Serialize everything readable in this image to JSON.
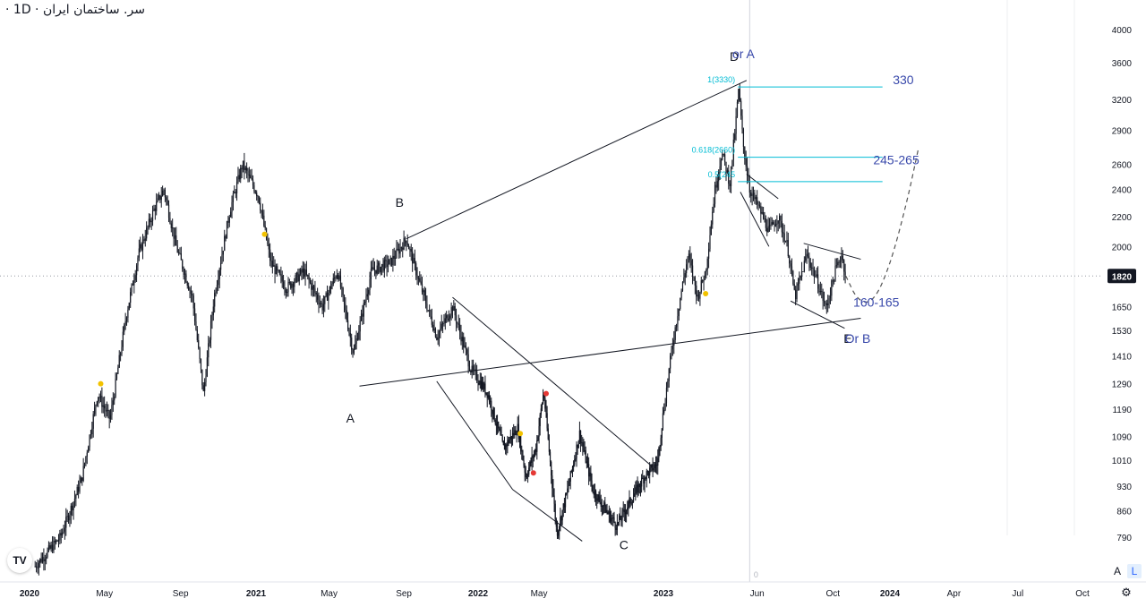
{
  "symbol": {
    "title": "سر. ساختمان ایران · 1D ·"
  },
  "logo": {
    "text": "TV",
    "icon": "tradingview-logo-icon"
  },
  "scale_buttons": {
    "auto": "A",
    "log": "L"
  },
  "settings": {
    "icon": "gear-icon"
  },
  "colors": {
    "candle": "#131722",
    "fib": "#00bcd4",
    "annotation": "#3949ab",
    "crosshair": "#9598a1",
    "marker_yellow": "#f2c200",
    "marker_red": "#e53935"
  },
  "chart_data": {
    "type": "candlestick",
    "y_scale": "log",
    "current_price": "1820",
    "y_ticks": [
      4000,
      3600,
      3200,
      2900,
      2600,
      2400,
      2200,
      2000,
      1820,
      1650,
      1530,
      1410,
      1290,
      1190,
      1090,
      1010,
      930,
      860,
      790
    ],
    "x_ticks": [
      {
        "date": "2020-01-01",
        "label": "2020",
        "bold": true
      },
      {
        "date": "2020-05-01",
        "label": "May",
        "bold": false
      },
      {
        "date": "2020-09-01",
        "label": "Sep",
        "bold": false
      },
      {
        "date": "2021-01-01",
        "label": "2021",
        "bold": true
      },
      {
        "date": "2021-05-01",
        "label": "May",
        "bold": false
      },
      {
        "date": "2021-09-01",
        "label": "Sep",
        "bold": false
      },
      {
        "date": "2022-01-01",
        "label": "2022",
        "bold": true
      },
      {
        "date": "2022-05-01",
        "label": "May",
        "bold": false
      },
      {
        "date": "2023-01-01",
        "label": "2023",
        "bold": true
      },
      {
        "date": "2023-06-01",
        "label": "Jun",
        "bold": false
      },
      {
        "date": "2023-10-01",
        "label": "Oct",
        "bold": false
      },
      {
        "date": "2024-01-01",
        "label": "2024",
        "bold": true
      },
      {
        "date": "2024-04-01",
        "label": "Apr",
        "bold": false
      },
      {
        "date": "2024-07-01",
        "label": "Jul",
        "bold": false
      },
      {
        "date": "2024-10-01",
        "label": "Oct",
        "bold": false
      }
    ],
    "price_path": [
      [
        "2020-01-10",
        720
      ],
      [
        "2020-02-20",
        790
      ],
      [
        "2020-03-25",
        950
      ],
      [
        "2020-04-20",
        1250
      ],
      [
        "2020-05-10",
        1150
      ],
      [
        "2020-06-05",
        1600
      ],
      [
        "2020-06-25",
        1950
      ],
      [
        "2020-07-20",
        2250
      ],
      [
        "2020-08-05",
        2400
      ],
      [
        "2020-08-25",
        2000
      ],
      [
        "2020-09-20",
        1700
      ],
      [
        "2020-10-08",
        1250
      ],
      [
        "2020-10-25",
        1700
      ],
      [
        "2020-11-20",
        2250
      ],
      [
        "2020-12-10",
        2600
      ],
      [
        "2021-01-05",
        2350
      ],
      [
        "2021-01-25",
        1900
      ],
      [
        "2021-02-20",
        1750
      ],
      [
        "2021-03-20",
        1850
      ],
      [
        "2021-04-20",
        1650
      ],
      [
        "2021-05-15",
        1850
      ],
      [
        "2021-06-10",
        1420
      ],
      [
        "2021-07-10",
        1850
      ],
      [
        "2021-08-10",
        1900
      ],
      [
        "2021-09-05",
        2050
      ],
      [
        "2021-09-25",
        1800
      ],
      [
        "2021-10-25",
        1500
      ],
      [
        "2021-11-20",
        1650
      ],
      [
        "2021-12-20",
        1350
      ],
      [
        "2022-01-20",
        1250
      ],
      [
        "2022-02-20",
        1050
      ],
      [
        "2022-03-20",
        1120
      ],
      [
        "2022-04-05",
        960
      ],
      [
        "2022-04-25",
        1050
      ],
      [
        "2022-05-10",
        1260
      ],
      [
        "2022-06-05",
        800
      ],
      [
        "2022-06-25",
        910
      ],
      [
        "2022-07-20",
        1100
      ],
      [
        "2022-08-15",
        920
      ],
      [
        "2022-09-10",
        860
      ],
      [
        "2022-10-01",
        820
      ],
      [
        "2022-10-25",
        880
      ],
      [
        "2022-11-25",
        960
      ],
      [
        "2022-12-20",
        1000
      ],
      [
        "2023-01-05",
        1250
      ],
      [
        "2023-01-15",
        1450
      ],
      [
        "2023-01-28",
        1700
      ],
      [
        "2023-02-10",
        1950
      ],
      [
        "2023-02-25",
        1700
      ],
      [
        "2023-03-10",
        1850
      ],
      [
        "2023-03-25",
        2400
      ],
      [
        "2023-04-05",
        2700
      ],
      [
        "2023-04-18",
        2450
      ],
      [
        "2023-04-28",
        3000
      ],
      [
        "2023-05-02",
        3300
      ],
      [
        "2023-05-10",
        2750
      ],
      [
        "2023-05-20",
        2400
      ],
      [
        "2023-06-05",
        2250
      ],
      [
        "2023-06-20",
        2100
      ],
      [
        "2023-07-05",
        2200
      ],
      [
        "2023-07-20",
        2000
      ],
      [
        "2023-08-01",
        1700
      ],
      [
        "2023-08-20",
        1950
      ],
      [
        "2023-09-05",
        1800
      ],
      [
        "2023-09-20",
        1640
      ],
      [
        "2023-10-05",
        1850
      ],
      [
        "2023-10-15",
        1950
      ],
      [
        "2023-10-22",
        1820
      ]
    ],
    "trend_lines": [
      {
        "from": [
          "2021-09-05",
          2050
        ],
        "to": [
          "2023-05-15",
          3400
        ]
      },
      {
        "from": [
          "2021-06-20",
          1280
        ],
        "to": [
          "2023-11-15",
          1590
        ]
      },
      {
        "from": [
          "2021-11-20",
          1700
        ],
        "to": [
          "2022-12-10",
          990
        ]
      },
      {
        "from": [
          "2021-10-25",
          1300
        ],
        "to": [
          "2022-03-10",
          920
        ]
      },
      {
        "from": [
          "2022-03-10",
          920
        ],
        "to": [
          "2022-07-25",
          780
        ]
      },
      {
        "from": [
          "2023-05-15",
          2520
        ],
        "to": [
          "2023-07-05",
          2330
        ]
      },
      {
        "from": [
          "2023-05-05",
          2380
        ],
        "to": [
          "2023-06-20",
          2000
        ]
      },
      {
        "from": [
          "2023-08-15",
          2020
        ],
        "to": [
          "2023-11-15",
          1920
        ]
      },
      {
        "from": [
          "2023-07-25",
          1680
        ],
        "to": [
          "2023-10-20",
          1540
        ]
      }
    ],
    "forecast_curve": [
      [
        "2023-10-22",
        1820
      ],
      [
        "2023-11-10",
        1680
      ],
      [
        "2023-12-05",
        1670
      ],
      [
        "2024-01-01",
        1880
      ],
      [
        "2024-01-25",
        2300
      ],
      [
        "2024-02-10",
        2720
      ]
    ],
    "fibonacci": [
      {
        "label": "1(3330)",
        "price": 3330,
        "annotation": "330"
      },
      {
        "label": "0.618(2660)",
        "price": 2660,
        "annotation": "245-265"
      },
      {
        "label": "0.5(245",
        "price": 2460,
        "annotation": ""
      }
    ],
    "fib_range": [
      "2023-05-01",
      "2023-12-20"
    ],
    "wave_labels": [
      {
        "text": "A",
        "date": "2021-06-05",
        "price": 1140
      },
      {
        "text": "B",
        "date": "2021-08-25",
        "price": 2270
      },
      {
        "text": "C",
        "date": "2022-10-15",
        "price": 760
      },
      {
        "text": "D",
        "date": "2023-04-25",
        "price": 3620
      },
      {
        "text": "E",
        "date": "2023-10-25",
        "price": 1470
      }
    ],
    "annotations": [
      {
        "text": "or A",
        "date": "2023-05-10",
        "price": 3650,
        "color": "annotation"
      },
      {
        "text": "330",
        "date": "2024-01-20",
        "price": 3360,
        "color": "annotation"
      },
      {
        "text": "245-265",
        "date": "2024-01-10",
        "price": 2600,
        "color": "annotation"
      },
      {
        "text": "160-165",
        "date": "2023-12-10",
        "price": 1650,
        "color": "annotation"
      },
      {
        "text": "Or B",
        "date": "2023-11-10",
        "price": 1470,
        "color": "annotation"
      }
    ],
    "markers": [
      {
        "date": "2020-04-25",
        "price": 1290,
        "color": "marker_yellow"
      },
      {
        "date": "2021-01-15",
        "price": 2080,
        "color": "marker_yellow"
      },
      {
        "date": "2022-03-25",
        "price": 1100,
        "color": "marker_yellow"
      },
      {
        "date": "2022-04-20",
        "price": 970,
        "color": "marker_red"
      },
      {
        "date": "2022-05-15",
        "price": 1250,
        "color": "marker_red"
      },
      {
        "date": "2023-03-10",
        "price": 1720,
        "color": "marker_yellow"
      }
    ],
    "crosshair_date": "2023-05-20",
    "crosshair_label": "0"
  }
}
